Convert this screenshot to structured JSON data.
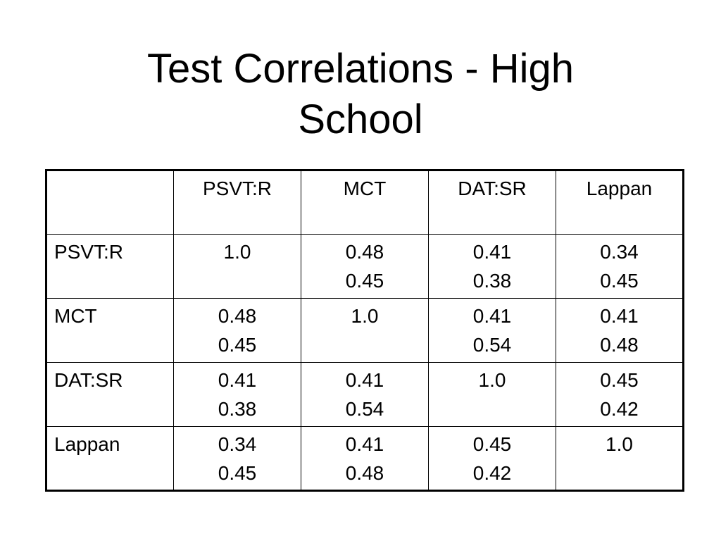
{
  "slide": {
    "title_line1": "Test Correlations - High",
    "title_line2": "School"
  },
  "table": {
    "corner": "",
    "columns": [
      "PSVT:R",
      "MCT",
      "DAT:SR",
      "Lappan"
    ],
    "rows": [
      {
        "label": "PSVT:R",
        "cells": [
          [
            "1.0"
          ],
          [
            "0.48",
            "0.45"
          ],
          [
            "0.41",
            "0.38"
          ],
          [
            "0.34",
            "0.45"
          ]
        ]
      },
      {
        "label": "MCT",
        "cells": [
          [
            "0.48",
            "0.45"
          ],
          [
            "1.0"
          ],
          [
            "0.41",
            "0.54"
          ],
          [
            "0.41",
            "0.48"
          ]
        ]
      },
      {
        "label": "DAT:SR",
        "cells": [
          [
            "0.41",
            "0.38"
          ],
          [
            "0.41",
            "0.54"
          ],
          [
            "1.0"
          ],
          [
            "0.45",
            "0.42"
          ]
        ]
      },
      {
        "label": "Lappan",
        "cells": [
          [
            "0.34",
            "0.45"
          ],
          [
            "0.41",
            "0.48"
          ],
          [
            "0.45",
            "0.42"
          ],
          [
            "1.0"
          ]
        ]
      }
    ]
  }
}
